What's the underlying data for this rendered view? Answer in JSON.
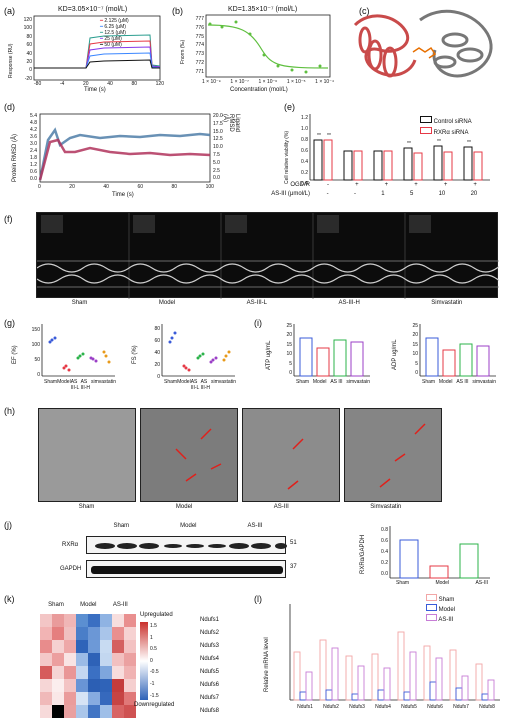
{
  "panels": {
    "a": {
      "label": "(a)",
      "title": "KD=3.05×10⁻⁷ (mol/L)",
      "ylabel": "Response (RU)",
      "xlabel": "Time (s)",
      "yticks": [
        "120",
        "100",
        "80",
        "60",
        "40",
        "20",
        "0",
        "-20"
      ],
      "xticks": [
        "-80",
        "-4",
        "20",
        "40",
        "80",
        "120"
      ],
      "legend": [
        "2.125 (μM)",
        "6.25 (μM)",
        "12.5 (μM)",
        "25 (μM)",
        "50 (μM)"
      ],
      "colors": [
        "#e63946",
        "#3a86ff",
        "#2a9d8f",
        "#8338ec",
        "#111111"
      ]
    },
    "b": {
      "label": "(b)",
      "title": "KD=1.35×10⁻⁷ (mol/L)",
      "ylabel": "Fnorm (‰)",
      "xlabel": "Concentration (mol/L)",
      "yticks": [
        "777",
        "776",
        "775",
        "774",
        "773",
        "772",
        "771"
      ],
      "xticks": [
        "1 × 10⁻⁹",
        "1 × 10⁻⁷",
        "1 × 10⁻⁶",
        "1 × 10⁻⁵",
        "1 × 10⁻⁴"
      ]
    },
    "c": {
      "label": "(c)"
    },
    "d": {
      "label": "(d)",
      "ylabel_left": "Protein RMSD (Å)",
      "ylabel_right": "Ligand RMSD (Å)",
      "xlabel": "Time (s)",
      "yticks_left": [
        "5.4",
        "4.8",
        "4.2",
        "3.6",
        "3.0",
        "2.4",
        "1.8",
        "1.2",
        "0.6",
        "0.0"
      ],
      "yticks_right": [
        "20.0",
        "17.5",
        "15.0",
        "12.5",
        "10.0",
        "7.5",
        "5.0",
        "2.5",
        "0.0"
      ],
      "xticks": [
        "0",
        "20",
        "40",
        "60",
        "80",
        "100"
      ]
    },
    "e": {
      "label": "(e)",
      "ylabel": "Cell relative viability (%)",
      "yticks": [
        "1.2",
        "1.0",
        "0.8",
        "0.6",
        "0.4",
        "0.2",
        "0.0"
      ],
      "legend": [
        "Control siRNA",
        "RXRα siRNA"
      ],
      "row1_label": "OGD/R",
      "row1": [
        "-",
        "+",
        "+",
        "+",
        "+",
        "+"
      ],
      "row2_label": "AS-III (μmol/L)",
      "row2": [
        "-",
        "-",
        "1",
        "5",
        "10",
        "20"
      ],
      "stars": [
        "**",
        "**",
        "**",
        "**",
        "**"
      ]
    },
    "f": {
      "label": "(f)",
      "groups": [
        "Sham",
        "Model",
        "AS-III-L",
        "AS-III-H",
        "Simvastatin"
      ]
    },
    "g": {
      "label": "(g)",
      "ylabel1": "EF (%)",
      "ylabel2": "FS (%)",
      "yticks1": [
        "150",
        "100",
        "50",
        "0"
      ],
      "yticks2": [
        "80",
        "60",
        "40",
        "20",
        "0"
      ],
      "groups": [
        "Sham",
        "Model",
        "AS III-L",
        "AS III-H",
        "simvastatin"
      ]
    },
    "i": {
      "label": "(i)",
      "ylabel1": "ATP ug/mL",
      "ylabel2": "ADP ug/mL",
      "yticks1": [
        "25",
        "20",
        "15",
        "10",
        "5",
        "0"
      ],
      "yticks2": [
        "25",
        "20",
        "15",
        "10",
        "5",
        "0"
      ],
      "groups": [
        "Sham",
        "Model",
        "AS III",
        "simvastain"
      ]
    },
    "h": {
      "label": "(h)",
      "groups": [
        "Sham",
        "Model",
        "AS-III",
        "Simvastatin"
      ]
    },
    "j": {
      "label": "(j)",
      "groups": [
        "Sham",
        "Model",
        "AS-III"
      ],
      "rows": [
        "RXRα",
        "GAPDH"
      ],
      "mw": [
        "51",
        "37"
      ],
      "ylabel": "RXRα/GAPDH",
      "yticks": [
        "0.8",
        "0.6",
        "0.4",
        "0.2",
        "0.0"
      ],
      "bar_groups": [
        "Sham",
        "Model",
        "AS-III"
      ]
    },
    "k": {
      "label": "(k)",
      "cols": [
        "Sham",
        "Model",
        "AS-III"
      ],
      "genes": [
        "Ndufs1",
        "Ndufs2",
        "Ndufs3",
        "Ndufs4",
        "Ndufs5",
        "Ndufs6",
        "Ndufs7",
        "Ndufs8"
      ],
      "scale_top": "Upregulated",
      "scale_bottom": "Downregulated",
      "scale_ticks": [
        "1.5",
        "1",
        "0.5",
        "0",
        "-0.5",
        "-1",
        "-1.5"
      ]
    },
    "l": {
      "label": "(l)",
      "ylabel": "Relative mRNA level",
      "legend": [
        "Sham",
        "Model",
        "AS-III"
      ],
      "genes": [
        "Ndufs1",
        "Ndufs2",
        "Ndufs3",
        "Ndufs4",
        "Ndufs5",
        "Ndufs6",
        "Ndufs7",
        "Ndufs8"
      ]
    }
  }
}
